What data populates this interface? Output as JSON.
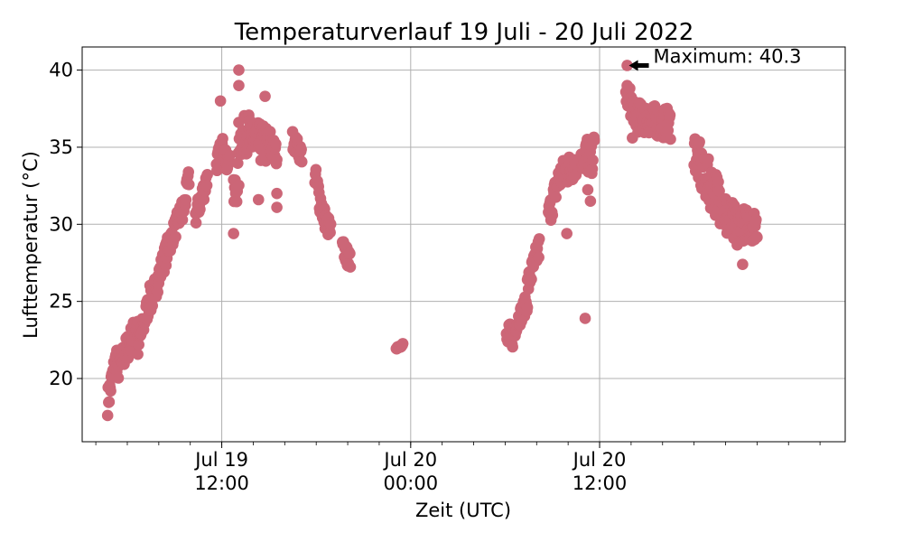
{
  "chart_data": {
    "type": "scatter",
    "title": "Temperaturverlauf 19 Juli - 20 Juli 2022",
    "xlabel": "Zeit (UTC)",
    "ylabel": "Lufttemperatur (°C)",
    "xlim": [
      "2022-07-19T03:08",
      "2022-07-21T03:36"
    ],
    "ylim": [
      15.9,
      41.5
    ],
    "grid": true,
    "marker_color": "#cc6677",
    "x_ticks": [
      {
        "at": "2022-07-19T12:00",
        "date": "Jul 19",
        "time": "12:00"
      },
      {
        "at": "2022-07-20T00:00",
        "date": "Jul 20",
        "time": "00:00"
      },
      {
        "at": "2022-07-20T12:00",
        "date": "Jul 20",
        "time": "12:00"
      }
    ],
    "y_ticks": [
      20,
      25,
      30,
      35,
      40
    ],
    "annotation": {
      "text": "Maximum: 40.3",
      "x": "2022-07-20T13:45",
      "y": 40.3
    },
    "segments": [
      {
        "start": "2022-07-19T04:45",
        "end": "2022-07-19T05:20",
        "y0": 18.5,
        "y1": 21.5,
        "spread": 1.8
      },
      {
        "start": "2022-07-19T05:20",
        "end": "2022-07-19T06:40",
        "y0": 20.5,
        "y1": 23.5,
        "spread": 1.8
      },
      {
        "start": "2022-07-19T06:40",
        "end": "2022-07-19T07:30",
        "y0": 22.0,
        "y1": 25.5,
        "spread": 1.6
      },
      {
        "start": "2022-07-19T07:30",
        "end": "2022-07-19T08:35",
        "y0": 25.0,
        "y1": 28.5,
        "spread": 1.6
      },
      {
        "start": "2022-07-19T08:35",
        "end": "2022-07-19T09:30",
        "y0": 28.5,
        "y1": 31.0,
        "spread": 1.4
      },
      {
        "start": "2022-07-19T09:30",
        "end": "2022-07-19T09:55",
        "y0": 30.5,
        "y1": 33.0,
        "spread": 1.4
      },
      {
        "start": "2022-07-19T10:20",
        "end": "2022-07-19T11:05",
        "y0": 30.5,
        "y1": 33.0,
        "spread": 1.4
      },
      {
        "start": "2022-07-19T11:40",
        "end": "2022-07-19T12:15",
        "y0": 34.0,
        "y1": 35.5,
        "spread": 1.4
      },
      {
        "start": "2022-07-19T12:15",
        "end": "2022-07-19T12:30",
        "y0": 33.5,
        "y1": 34.5,
        "spread": 0.8
      },
      {
        "start": "2022-07-19T12:45",
        "end": "2022-07-19T13:05",
        "y0": 31.5,
        "y1": 33.5,
        "spread": 2.8
      },
      {
        "start": "2022-07-19T13:05",
        "end": "2022-07-19T13:45",
        "y0": 35.5,
        "y1": 36.0,
        "spread": 2.6
      },
      {
        "start": "2022-07-19T13:45",
        "end": "2022-07-19T15:10",
        "y0": 35.5,
        "y1": 35.0,
        "spread": 2.6
      },
      {
        "start": "2022-07-19T15:10",
        "end": "2022-07-19T15:30",
        "y0": 35.0,
        "y1": 34.5,
        "spread": 1.6
      },
      {
        "start": "2022-07-19T16:30",
        "end": "2022-07-19T17:05",
        "y0": 35.5,
        "y1": 34.5,
        "spread": 1.2
      },
      {
        "start": "2022-07-19T17:55",
        "end": "2022-07-19T18:30",
        "y0": 33.0,
        "y1": 30.5,
        "spread": 1.8
      },
      {
        "start": "2022-07-19T18:30",
        "end": "2022-07-19T18:55",
        "y0": 30.5,
        "y1": 29.5,
        "spread": 1.4
      },
      {
        "start": "2022-07-19T19:40",
        "end": "2022-07-19T20:10",
        "y0": 28.5,
        "y1": 27.5,
        "spread": 1.2
      },
      {
        "start": "2022-07-19T23:05",
        "end": "2022-07-19T23:30",
        "y0": 22.0,
        "y1": 22.2,
        "spread": 0.2
      },
      {
        "start": "2022-07-20T06:05",
        "end": "2022-07-20T06:40",
        "y0": 22.5,
        "y1": 23.0,
        "spread": 1.8
      },
      {
        "start": "2022-07-20T06:40",
        "end": "2022-07-20T07:25",
        "y0": 23.5,
        "y1": 25.0,
        "spread": 1.2
      },
      {
        "start": "2022-07-20T07:25",
        "end": "2022-07-20T08:10",
        "y0": 26.0,
        "y1": 28.5,
        "spread": 1.6
      },
      {
        "start": "2022-07-20T08:45",
        "end": "2022-07-20T09:25",
        "y0": 30.5,
        "y1": 33.0,
        "spread": 1.8
      },
      {
        "start": "2022-07-20T09:25",
        "end": "2022-07-20T10:30",
        "y0": 33.0,
        "y1": 34.0,
        "spread": 2.0
      },
      {
        "start": "2022-07-20T10:50",
        "end": "2022-07-20T11:15",
        "y0": 34.0,
        "y1": 35.0,
        "spread": 1.6
      },
      {
        "start": "2022-07-20T11:15",
        "end": "2022-07-20T11:40",
        "y0": 33.0,
        "y1": 35.0,
        "spread": 2.0
      },
      {
        "start": "2022-07-20T13:40",
        "end": "2022-07-20T14:10",
        "y0": 38.5,
        "y1": 37.5,
        "spread": 1.8
      },
      {
        "start": "2022-07-20T14:10",
        "end": "2022-07-20T16:30",
        "y0": 37.0,
        "y1": 36.5,
        "spread": 2.0
      },
      {
        "start": "2022-07-20T18:00",
        "end": "2022-07-20T18:45",
        "y0": 35.0,
        "y1": 32.5,
        "spread": 3.0
      },
      {
        "start": "2022-07-20T18:45",
        "end": "2022-07-20T20:00",
        "y0": 33.0,
        "y1": 31.0,
        "spread": 3.0
      },
      {
        "start": "2022-07-20T20:00",
        "end": "2022-07-20T20:50",
        "y0": 30.5,
        "y1": 29.5,
        "spread": 3.0
      },
      {
        "start": "2022-07-20T20:50",
        "end": "2022-07-20T22:00",
        "y0": 30.0,
        "y1": 30.0,
        "spread": 2.2
      }
    ],
    "points": [
      {
        "x": "2022-07-19T11:55",
        "y": 38.0
      },
      {
        "x": "2022-07-19T13:05",
        "y": 40.0
      },
      {
        "x": "2022-07-19T13:05",
        "y": 39.0
      },
      {
        "x": "2022-07-19T12:45",
        "y": 29.4
      },
      {
        "x": "2022-07-19T14:45",
        "y": 38.3
      },
      {
        "x": "2022-07-19T15:30",
        "y": 31.1
      },
      {
        "x": "2022-07-19T15:30",
        "y": 32.0
      },
      {
        "x": "2022-07-19T14:20",
        "y": 31.6
      },
      {
        "x": "2022-07-20T09:55",
        "y": 29.4
      },
      {
        "x": "2022-07-20T11:05",
        "y": 23.9
      },
      {
        "x": "2022-07-20T11:25",
        "y": 31.5
      },
      {
        "x": "2022-07-20T13:45",
        "y": 40.3
      },
      {
        "x": "2022-07-20T13:45",
        "y": 39.0
      },
      {
        "x": "2022-07-20T14:05",
        "y": 35.6
      },
      {
        "x": "2022-07-20T21:05",
        "y": 27.4
      }
    ]
  }
}
